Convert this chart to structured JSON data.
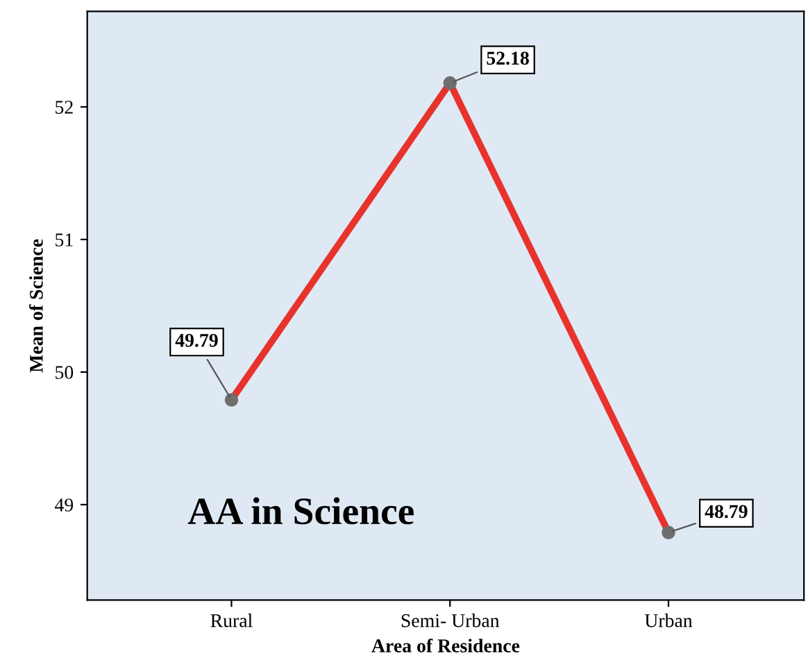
{
  "chart_data": {
    "type": "line",
    "xlabel": "Area of Residence",
    "ylabel": "Mean of Science",
    "annotations": [
      "AA in Science"
    ],
    "categories": [
      "Rural",
      "Semi- Urban",
      "Urban"
    ],
    "series": [
      {
        "color": "#e8332c",
        "values": [
          49.79,
          52.18,
          48.79
        ]
      }
    ],
    "ylim": [
      48.28,
      52.72
    ],
    "yticks": [
      49,
      50,
      51,
      52
    ],
    "data_labels": true,
    "marker": "circle",
    "line_style": "solid",
    "grid": false,
    "legend": false
  }
}
